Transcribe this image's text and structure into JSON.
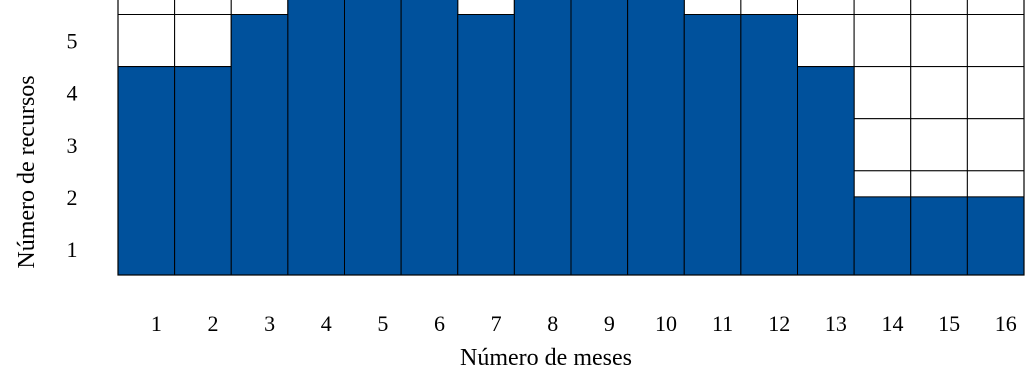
{
  "chart_data": {
    "type": "bar",
    "categories": [
      "1",
      "2",
      "3",
      "4",
      "5",
      "6",
      "7",
      "8",
      "9",
      "10",
      "11",
      "12",
      "13",
      "14",
      "15",
      "16"
    ],
    "values": [
      4,
      4,
      5,
      6,
      6,
      6,
      5,
      6,
      6,
      6,
      5,
      5,
      4,
      1.5,
      1.5,
      1.5
    ],
    "yticks": [
      "1",
      "2",
      "3",
      "4",
      "5"
    ],
    "ylim": [
      0,
      6
    ],
    "xlabel": "Número de meses",
    "ylabel": "Número de recursos",
    "grid": true,
    "bar_color": "#00519c"
  }
}
